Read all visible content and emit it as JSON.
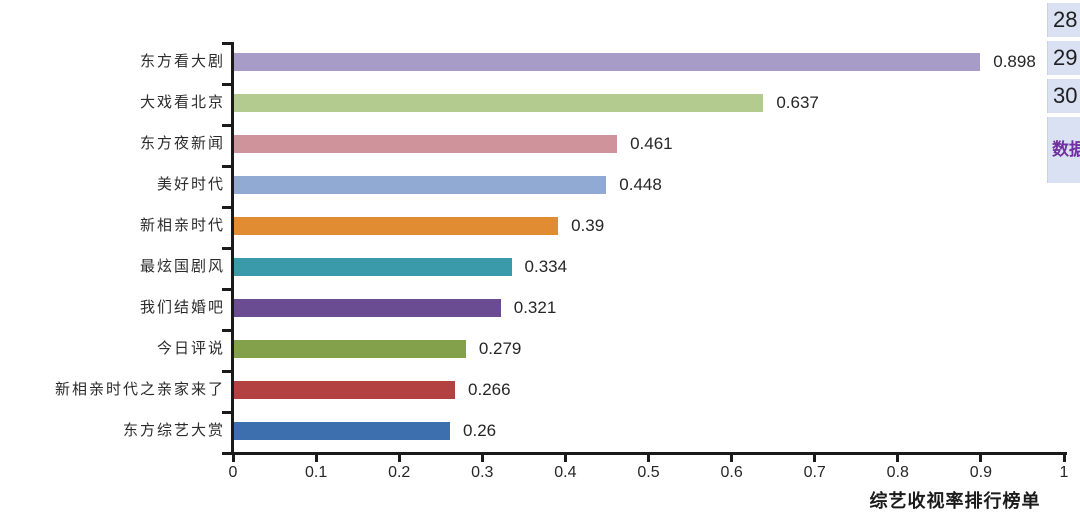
{
  "chart_data": {
    "type": "bar",
    "orientation": "horizontal",
    "title": "",
    "xlabel": "综艺收视率排行榜单",
    "ylabel": "",
    "categories": [
      "东方看大剧",
      "大戏看北京",
      "东方夜新闻",
      "美好时代",
      "新相亲时代",
      "最炫国剧风",
      "我们结婚吧",
      "今日评说",
      "新相亲时代之亲家来了",
      "东方综艺大赏"
    ],
    "values": [
      0.898,
      0.637,
      0.461,
      0.448,
      0.39,
      0.334,
      0.321,
      0.279,
      0.266,
      0.26
    ],
    "value_labels": [
      "0.898",
      "0.637",
      "0.461",
      "0.448",
      "0.39",
      "0.334",
      "0.321",
      "0.279",
      "0.266",
      "0.26"
    ],
    "bar_colors": [
      "#a79cc8",
      "#b4cb90",
      "#cf939b",
      "#91aad4",
      "#e18c33",
      "#3b9aaa",
      "#6a4c93",
      "#83a04a",
      "#b44142",
      "#3d6eae"
    ],
    "xlim": [
      0,
      1
    ],
    "x_ticks": [
      "0",
      "0.1",
      "0.2",
      "0.3",
      "0.4",
      "0.5",
      "0.6",
      "0.7",
      "0.8",
      "0.9",
      "1"
    ],
    "grid": false,
    "legend": null,
    "value_labels_shown": true,
    "axis_color": "#1a1a1a"
  },
  "side_panel": {
    "rows": [
      {
        "label": "28"
      },
      {
        "label": "29"
      },
      {
        "label": "30"
      }
    ],
    "highlight_text": "数据",
    "highlight_color": "#7030a0",
    "cell_bg": "#d9e1f2"
  }
}
